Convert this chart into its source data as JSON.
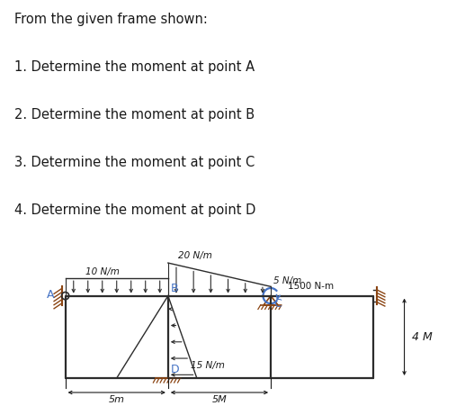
{
  "text_lines": [
    "From the given frame shown:",
    "1. Determine the moment at point A",
    "2. Determine the moment at point B",
    "3. Determine the moment at point C",
    "4. Determine the moment at point D"
  ],
  "colors": {
    "frame": "#2c2c2c",
    "text": "#1a1a1a",
    "hatch": "#8B4513",
    "point_labels": "#4472C4",
    "moment_arc": "#4472C4",
    "background": "#ffffff"
  },
  "load_labels": {
    "left": "10 N/m",
    "mid": "20 N/m",
    "right": "5 N/m",
    "col": "15 N/m",
    "moment": "1500 N-m"
  },
  "dim_labels": {
    "left": "5m",
    "right": "5M",
    "height": "4 M"
  },
  "point_names": [
    "A",
    "B",
    "C",
    "D"
  ]
}
